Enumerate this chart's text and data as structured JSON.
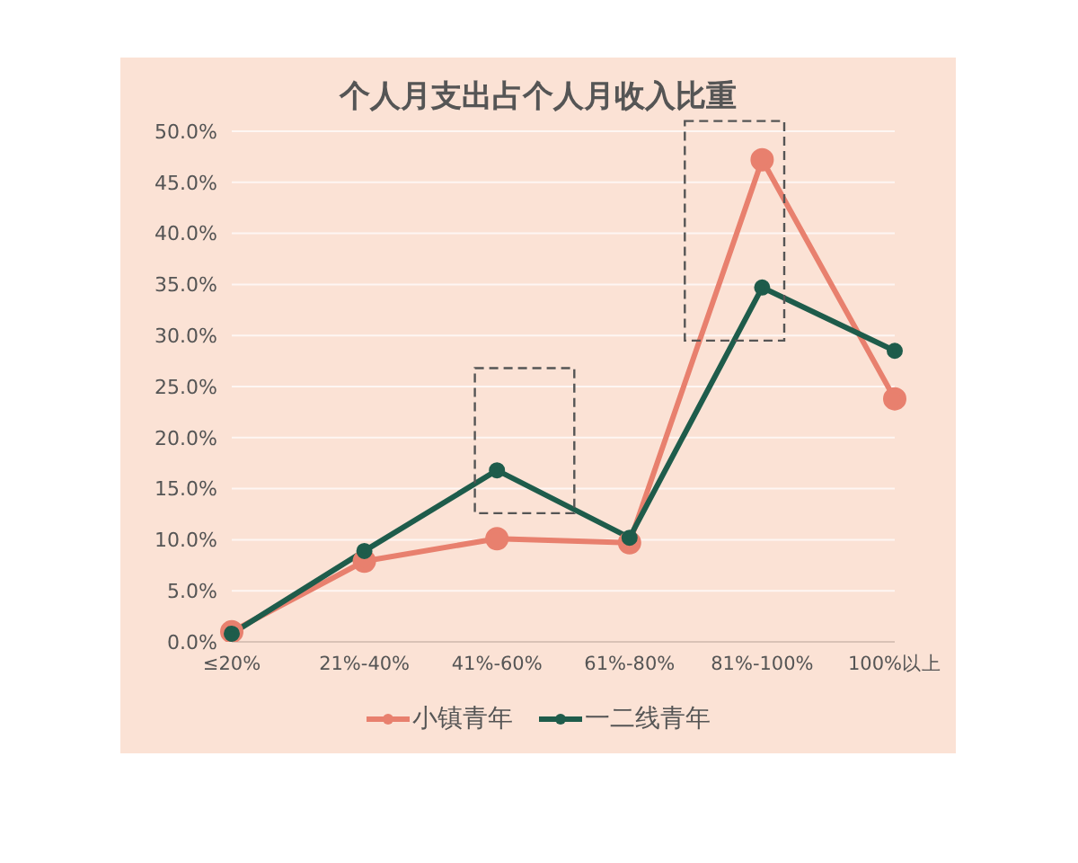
{
  "chart_data": {
    "type": "line",
    "title": "个人月支出占个人月收入比重",
    "categories": [
      "≤20%",
      "21%-40%",
      "41%-60%",
      "61%-80%",
      "81%-100%",
      "100%以上"
    ],
    "series": [
      {
        "name": "小镇青年",
        "color": "#e8806e",
        "values": [
          1.0,
          7.9,
          10.1,
          9.7,
          47.2,
          23.8
        ]
      },
      {
        "name": "一二线青年",
        "color": "#1e5c4b",
        "values": [
          0.8,
          8.9,
          16.8,
          10.2,
          34.7,
          28.5
        ]
      }
    ],
    "ylim": [
      0,
      50
    ],
    "yticks": [
      {
        "value": 0,
        "label": "0.0%"
      },
      {
        "value": 5,
        "label": "5.0%"
      },
      {
        "value": 10,
        "label": "10.0%"
      },
      {
        "value": 15,
        "label": "15.0%"
      },
      {
        "value": 20,
        "label": "20.0%"
      },
      {
        "value": 25,
        "label": "25.0%"
      },
      {
        "value": 30,
        "label": "30.0%"
      },
      {
        "value": 35,
        "label": "35.0%"
      },
      {
        "value": 40,
        "label": "40.0%"
      },
      {
        "value": 45,
        "label": "45.0%"
      },
      {
        "value": 50,
        "label": "50.0%"
      }
    ],
    "grid": "y",
    "legend": "bottom",
    "marker": "circle",
    "line_style": "solid"
  }
}
